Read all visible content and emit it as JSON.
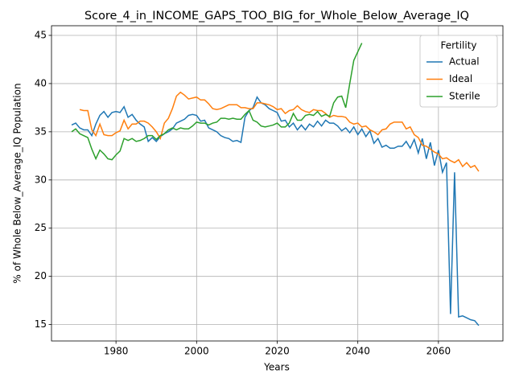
{
  "chart_data": {
    "type": "line",
    "title": "Score_4_in_INCOME_GAPS_TOO_BIG_for_Whole_Below_Average_IQ",
    "xlabel": "Years",
    "ylabel": "% of Whole Below_Average_IQ Population",
    "legend_title": "Fertility",
    "legend": "upper right",
    "grid": true,
    "xlim": [
      1964,
      2076
    ],
    "ylim": [
      13.3,
      46.0
    ],
    "xticks": [
      1980,
      2000,
      2020,
      2040,
      2060
    ],
    "yticks": [
      15,
      20,
      25,
      30,
      35,
      40,
      45
    ],
    "x": [
      1969,
      1970,
      1971,
      1972,
      1973,
      1974,
      1975,
      1976,
      1977,
      1978,
      1979,
      1980,
      1981,
      1982,
      1983,
      1984,
      1985,
      1986,
      1987,
      1988,
      1989,
      1990,
      1991,
      1992,
      1993,
      1994,
      1995,
      1996,
      1997,
      1998,
      1999,
      2000,
      2001,
      2002,
      2003,
      2004,
      2005,
      2006,
      2007,
      2008,
      2009,
      2010,
      2011,
      2012,
      2013,
      2014,
      2015,
      2016,
      2017,
      2018,
      2019,
      2020,
      2021,
      2022,
      2023,
      2024,
      2025,
      2026,
      2027,
      2028,
      2029,
      2030,
      2031,
      2032,
      2033,
      2034,
      2035,
      2036,
      2037,
      2038,
      2039,
      2040,
      2041,
      2042,
      2043,
      2044,
      2045,
      2046,
      2047,
      2048,
      2049,
      2050,
      2051,
      2052,
      2053,
      2054,
      2055,
      2056,
      2057,
      2058,
      2059,
      2060,
      2061,
      2062,
      2063,
      2064,
      2065,
      2066,
      2067,
      2068,
      2069,
      2070
    ],
    "series": [
      {
        "name": "Actual",
        "color": "#1f77b4",
        "values": [
          35.7,
          35.9,
          35.4,
          35.2,
          35.2,
          34.6,
          35.8,
          36.7,
          37.1,
          36.5,
          37.0,
          37.1,
          37.0,
          37.6,
          36.5,
          36.8,
          36.2,
          35.8,
          35.5,
          34.0,
          34.4,
          34.0,
          34.5,
          34.8,
          35.0,
          35.3,
          35.9,
          36.1,
          36.3,
          36.7,
          36.8,
          36.7,
          36.1,
          36.2,
          35.4,
          35.2,
          35.0,
          34.6,
          34.4,
          34.3,
          34.0,
          34.1,
          33.9,
          36.5,
          37.2,
          37.5,
          38.6,
          38.0,
          37.8,
          37.4,
          37.2,
          37.0,
          36.1,
          36.2,
          35.5,
          35.9,
          35.2,
          35.7,
          35.2,
          35.8,
          35.5,
          36.1,
          35.6,
          36.2,
          35.9,
          35.9,
          35.6,
          35.1,
          35.4,
          34.9,
          35.5,
          34.7,
          35.3,
          34.5,
          35.1,
          33.8,
          34.3,
          33.4,
          33.6,
          33.3,
          33.3,
          33.5,
          33.5,
          34.0,
          33.3,
          34.2,
          32.8,
          34.3,
          32.2,
          33.9,
          31.5,
          33.1,
          30.8,
          31.8,
          16.1,
          30.8,
          15.8,
          15.9,
          15.7,
          15.5,
          15.4,
          14.9
        ]
      },
      {
        "name": "Ideal",
        "color": "#ff7f0e",
        "values": [
          null,
          null,
          37.3,
          37.2,
          37.2,
          35.2,
          34.6,
          35.8,
          34.7,
          34.6,
          34.6,
          34.9,
          35.1,
          36.2,
          35.3,
          35.8,
          35.8,
          36.1,
          36.1,
          35.9,
          35.5,
          35.0,
          34.3,
          35.9,
          36.4,
          37.4,
          38.7,
          39.1,
          38.8,
          38.4,
          38.5,
          38.6,
          38.3,
          38.3,
          37.9,
          37.4,
          37.3,
          37.4,
          37.6,
          37.8,
          37.8,
          37.8,
          37.5,
          37.5,
          37.4,
          37.4,
          38.0,
          38.0,
          37.9,
          37.8,
          37.6,
          37.3,
          37.4,
          36.9,
          37.2,
          37.3,
          37.7,
          37.3,
          37.1,
          37.0,
          37.3,
          37.2,
          37.2,
          36.9,
          36.5,
          36.7,
          36.6,
          36.6,
          36.5,
          36.0,
          35.8,
          35.9,
          35.5,
          35.6,
          35.2,
          35.0,
          34.7,
          35.2,
          35.3,
          35.8,
          36.0,
          36.0,
          36.0,
          35.3,
          35.5,
          34.7,
          34.4,
          33.6,
          33.5,
          33.2,
          32.9,
          32.7,
          32.2,
          32.3,
          32.0,
          31.8,
          32.1,
          31.4,
          31.8,
          31.3,
          31.5,
          30.9
        ]
      },
      {
        "name": "Sterile",
        "color": "#2ca02c",
        "values": [
          35.0,
          35.3,
          34.8,
          34.6,
          34.4,
          33.2,
          32.2,
          33.1,
          32.7,
          32.2,
          32.1,
          32.6,
          33.0,
          34.3,
          34.1,
          34.3,
          34.0,
          34.1,
          34.3,
          34.6,
          34.6,
          34.2,
          34.6,
          34.8,
          35.2,
          35.4,
          35.2,
          35.4,
          35.3,
          35.3,
          35.6,
          36.0,
          35.9,
          35.9,
          35.7,
          35.9,
          36.0,
          36.4,
          36.4,
          36.3,
          36.4,
          36.3,
          36.3,
          36.8,
          37.2,
          36.2,
          36.0,
          35.6,
          35.5,
          35.6,
          35.7,
          35.9,
          35.5,
          35.5,
          35.9,
          36.9,
          36.2,
          36.2,
          36.7,
          36.8,
          36.7,
          37.1,
          36.6,
          36.8,
          36.6,
          38.0,
          38.6,
          38.7,
          37.5,
          40.0,
          42.4,
          43.3,
          44.2,
          null,
          null,
          null,
          null,
          null,
          null,
          null,
          null,
          null,
          null,
          null,
          null,
          null,
          null,
          null,
          null,
          null,
          null,
          null,
          null,
          null,
          null,
          null,
          null,
          null,
          null,
          null,
          null,
          null
        ]
      }
    ]
  }
}
